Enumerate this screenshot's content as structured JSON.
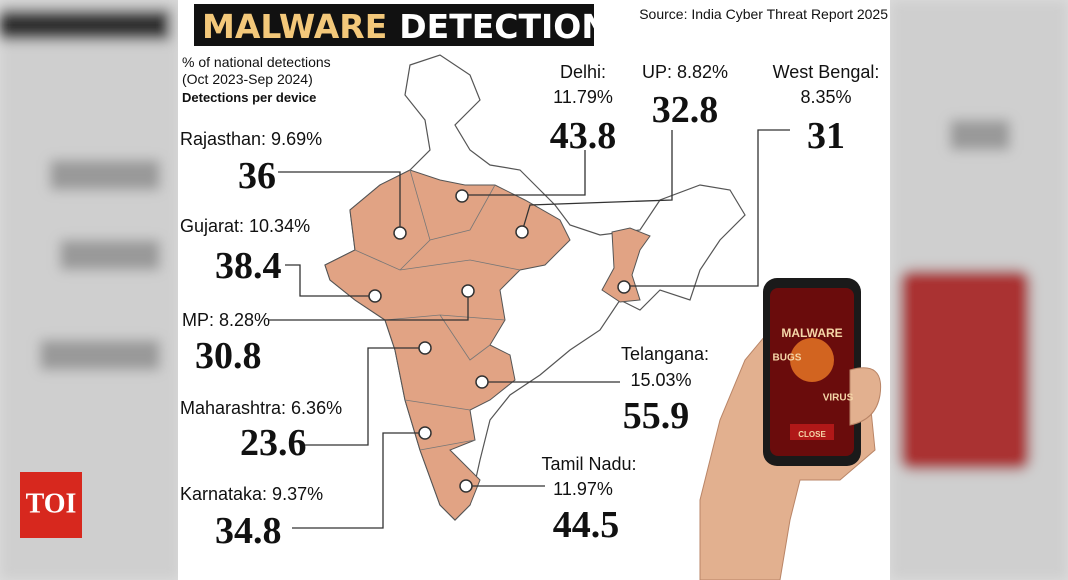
{
  "logo": "TOI",
  "header": {
    "title_part1": "MALWARE",
    "title_part2": "DETECTION",
    "source": "Source: India Cyber Threat Report 2025"
  },
  "legend": {
    "line1": "% of national detections",
    "line2": "(Oct 2023-Sep 2024)",
    "line3": "Detections per device"
  },
  "states": [
    {
      "lines": [
        "Rajasthan: 9.69%"
      ],
      "per_device": "36"
    },
    {
      "lines": [
        "Gujarat: 10.34%"
      ],
      "per_device": "38.4"
    },
    {
      "lines": [
        "MP: 8.28%"
      ],
      "per_device": "30.8"
    },
    {
      "lines": [
        "Maharashtra: 6.36%"
      ],
      "per_device": "23.6"
    },
    {
      "lines": [
        "Karnataka: 9.37%"
      ],
      "per_device": "34.8"
    },
    {
      "lines": [
        "Delhi:",
        "11.79%"
      ],
      "per_device": "43.8"
    },
    {
      "lines": [
        "UP: 8.82%"
      ],
      "per_device": "32.8"
    },
    {
      "lines": [
        "West Bengal:",
        "8.35%"
      ],
      "per_device": "31"
    },
    {
      "lines": [
        "Telangana:",
        "15.03%"
      ],
      "per_device": "55.9"
    },
    {
      "lines": [
        "Tamil Nadu:",
        "11.97%"
      ],
      "per_device": "44.5"
    }
  ],
  "phone": {
    "labels": [
      "MALWARE",
      "BUGS",
      "VIRUS",
      "CLOSE"
    ]
  }
}
